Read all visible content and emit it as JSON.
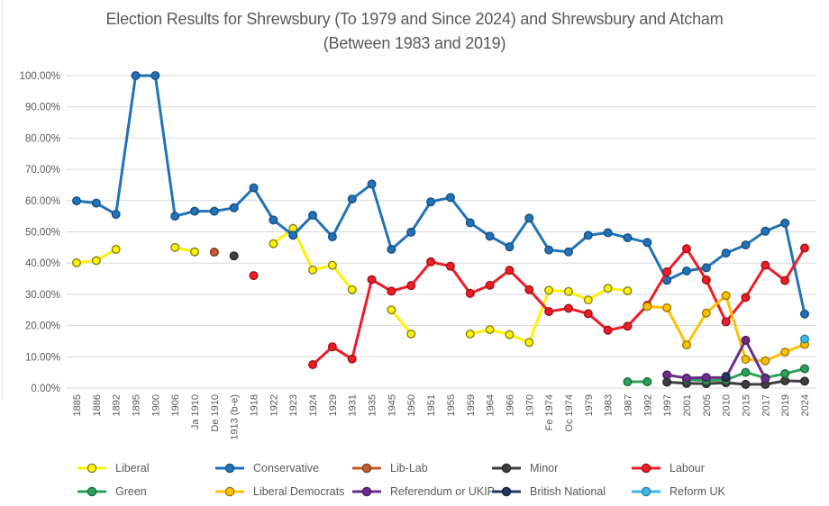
{
  "colors": {
    "background": "#FFFFFF",
    "grid": "#D9D9D9",
    "axis_text": "#595959",
    "title_text": "#595959",
    "legend_text": "#595959"
  },
  "chart_data": {
    "type": "line",
    "title": "Election Results for Shrewsbury (To 1979 and Since 2024) and Shrewsbury and Atcham (Between 1983 and 2019)",
    "xlabel": "",
    "ylabel": "",
    "grid": "horizontal",
    "legend_position": "bottom",
    "x_axis": {
      "categories": [
        "1885",
        "1886",
        "1892",
        "1895",
        "1900",
        "1906",
        "Ja 1910",
        "De 1910",
        "1913 (b-e)",
        "1918",
        "1922",
        "1923",
        "1924",
        "1929",
        "1931",
        "1935",
        "1945",
        "1950",
        "1951",
        "1955",
        "1959",
        "1964",
        "1966",
        "1970",
        "Fe 1974",
        "Oc 1974",
        "1979",
        "1983",
        "1987",
        "1992",
        "1997",
        "2001",
        "2005",
        "2010",
        "2015",
        "2017",
        "2019",
        "2024"
      ],
      "label_rotation_deg": 90
    },
    "y_axis": {
      "min": 0,
      "max": 100,
      "step": 10,
      "unit": "%",
      "tick_labels": [
        "100.00%",
        "90.00%",
        "80.00%",
        "70.00%",
        "60.00%",
        "50.00%",
        "40.00%",
        "30.00%",
        "20.00%",
        "10.00%",
        "0.00%"
      ]
    },
    "legend_rows": [
      [
        "Liberal",
        "Conservative",
        "Lib-Lab",
        "Minor",
        "Labour"
      ],
      [
        "Green",
        "Liberal Democrats",
        "Referendum or UKIP",
        "British National",
        "Reform UK"
      ]
    ],
    "series": [
      {
        "name": "Liberal",
        "color": "#FFF100",
        "edge": "#83831F",
        "values": [
          40.1,
          40.8,
          44.4,
          null,
          null,
          45.0,
          43.6,
          null,
          null,
          null,
          46.2,
          51.1,
          37.8,
          39.3,
          31.5,
          null,
          25.0,
          17.3,
          null,
          null,
          17.3,
          18.7,
          17.1,
          14.6,
          31.3,
          30.9,
          28.2,
          31.9,
          31.1,
          null,
          null,
          null,
          null,
          null,
          null,
          null,
          null,
          null
        ]
      },
      {
        "name": "Conservative",
        "color": "#2172B8",
        "edge": "#174F80",
        "values": [
          59.9,
          59.2,
          55.6,
          100,
          100,
          55.0,
          56.6,
          56.6,
          57.7,
          64.1,
          53.8,
          48.9,
          55.3,
          48.4,
          60.5,
          65.3,
          44.4,
          49.9,
          59.6,
          61.0,
          52.9,
          48.6,
          45.2,
          54.4,
          44.2,
          43.6,
          48.9,
          49.7,
          48.1,
          46.6,
          34.5,
          37.5,
          38.5,
          43.2,
          45.8,
          50.2,
          52.8,
          23.7
        ]
      },
      {
        "name": "Lib-Lab",
        "color": "#C55A2B",
        "edge": "#7C3A1D",
        "values": [
          null,
          null,
          null,
          null,
          null,
          null,
          null,
          43.5,
          null,
          null,
          null,
          null,
          null,
          null,
          null,
          null,
          null,
          null,
          null,
          null,
          null,
          null,
          null,
          null,
          null,
          null,
          null,
          null,
          null,
          null,
          null,
          null,
          null,
          null,
          null,
          null,
          null,
          null
        ]
      },
      {
        "name": "Minor",
        "color": "#3F3F3F",
        "edge": "#262626",
        "values": [
          null,
          null,
          null,
          null,
          null,
          null,
          null,
          null,
          42.3,
          null,
          null,
          null,
          null,
          null,
          null,
          null,
          null,
          null,
          null,
          null,
          null,
          null,
          null,
          null,
          null,
          null,
          null,
          null,
          null,
          null,
          1.9,
          1.5,
          1.4,
          1.7,
          1.2,
          1.2,
          2.3,
          2.2
        ]
      },
      {
        "name": "Labour",
        "color": "#EE1C25",
        "edge": "#9E1218",
        "values": [
          null,
          null,
          null,
          null,
          null,
          null,
          null,
          null,
          null,
          36.0,
          null,
          null,
          7.5,
          13.2,
          9.3,
          34.7,
          31.0,
          32.8,
          40.4,
          39.0,
          30.3,
          32.9,
          37.7,
          31.5,
          24.5,
          25.5,
          23.8,
          18.5,
          19.8,
          26.5,
          37.2,
          44.6,
          34.6,
          21.2,
          29.0,
          39.3,
          34.4,
          44.8
        ]
      },
      {
        "name": "Green",
        "color": "#2AA158",
        "edge": "#1B6B3A",
        "values": [
          null,
          null,
          null,
          null,
          null,
          null,
          null,
          null,
          null,
          null,
          null,
          null,
          null,
          null,
          null,
          null,
          null,
          null,
          null,
          null,
          null,
          null,
          null,
          null,
          null,
          null,
          null,
          null,
          2.0,
          2.0,
          null,
          2.7,
          2.4,
          2.6,
          5.0,
          3.3,
          4.6,
          6.2
        ]
      },
      {
        "name": "Liberal Democrats",
        "color": "#FFC000",
        "edge": "#9C7A00",
        "values": [
          null,
          null,
          null,
          null,
          null,
          null,
          null,
          null,
          null,
          null,
          null,
          null,
          null,
          null,
          null,
          null,
          null,
          null,
          null,
          null,
          null,
          null,
          null,
          null,
          null,
          null,
          null,
          null,
          null,
          26.1,
          25.7,
          13.8,
          24.0,
          29.6,
          9.2,
          8.7,
          11.5,
          14.0
        ]
      },
      {
        "name": "Referendum or UKIP",
        "color": "#6B2D8B",
        "edge": "#471D5D",
        "values": [
          null,
          null,
          null,
          null,
          null,
          null,
          null,
          null,
          null,
          null,
          null,
          null,
          null,
          null,
          null,
          null,
          null,
          null,
          null,
          null,
          null,
          null,
          null,
          null,
          null,
          null,
          null,
          null,
          null,
          null,
          4.2,
          3.2,
          3.4,
          3.3,
          15.3,
          3.0,
          null,
          null
        ]
      },
      {
        "name": "British National",
        "color": "#1F3864",
        "edge": "#15253F",
        "values": [
          null,
          null,
          null,
          null,
          null,
          null,
          null,
          null,
          null,
          null,
          null,
          null,
          null,
          null,
          null,
          null,
          null,
          null,
          null,
          null,
          null,
          null,
          null,
          null,
          null,
          null,
          null,
          null,
          null,
          null,
          null,
          null,
          null,
          3.7,
          null,
          null,
          null,
          null
        ]
      },
      {
        "name": "Reform UK",
        "color": "#3EB7E9",
        "edge": "#2A7FA3",
        "values": [
          null,
          null,
          null,
          null,
          null,
          null,
          null,
          null,
          null,
          null,
          null,
          null,
          null,
          null,
          null,
          null,
          null,
          null,
          null,
          null,
          null,
          null,
          null,
          null,
          null,
          null,
          null,
          null,
          null,
          null,
          null,
          null,
          null,
          null,
          null,
          null,
          null,
          15.7
        ]
      }
    ]
  }
}
